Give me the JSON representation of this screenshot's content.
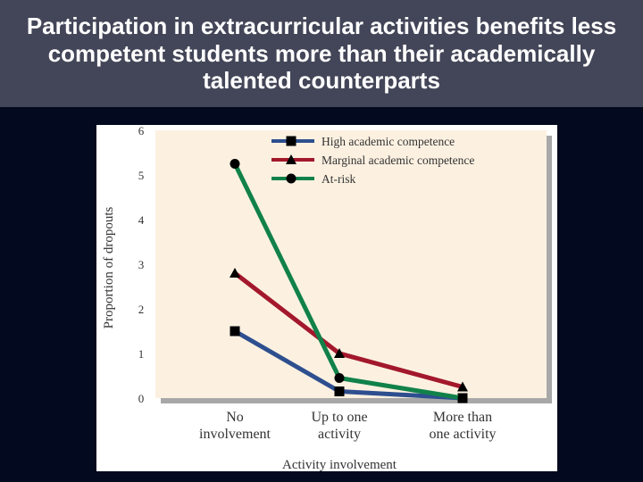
{
  "slide": {
    "title": "Participation in extracurricular activities benefits less competent students more than their academically talented counterparts"
  },
  "chart_data": {
    "type": "line",
    "title": "",
    "xlabel": "Activity involvement",
    "ylabel": "Proportion of dropouts",
    "categories": [
      "No involvement",
      "Up to one activity",
      "More than one activity"
    ],
    "category_lines": [
      [
        "No",
        "involvement"
      ],
      [
        "Up to one",
        "activity"
      ],
      [
        "More than",
        "one activity"
      ]
    ],
    "ylim": [
      0,
      6
    ],
    "yticks": [
      "0",
      "1",
      "2",
      "3",
      "4",
      "5",
      "6"
    ],
    "grid": false,
    "legend_position": "top",
    "series": [
      {
        "name": "High academic competence",
        "values": [
          1.5,
          0.15,
          0.0
        ],
        "color": "#2e4f8f",
        "marker": "square"
      },
      {
        "name": "Marginal academic competence",
        "values": [
          2.8,
          1.0,
          0.25
        ],
        "color": "#a3182c",
        "marker": "triangle"
      },
      {
        "name": "At-risk",
        "values": [
          5.25,
          0.45,
          0.0
        ],
        "color": "#11814a",
        "marker": "circle"
      }
    ]
  },
  "colors": {
    "slide_background": "#03091f",
    "title_band": "#434658",
    "plot_background": "#fcf1e1"
  }
}
